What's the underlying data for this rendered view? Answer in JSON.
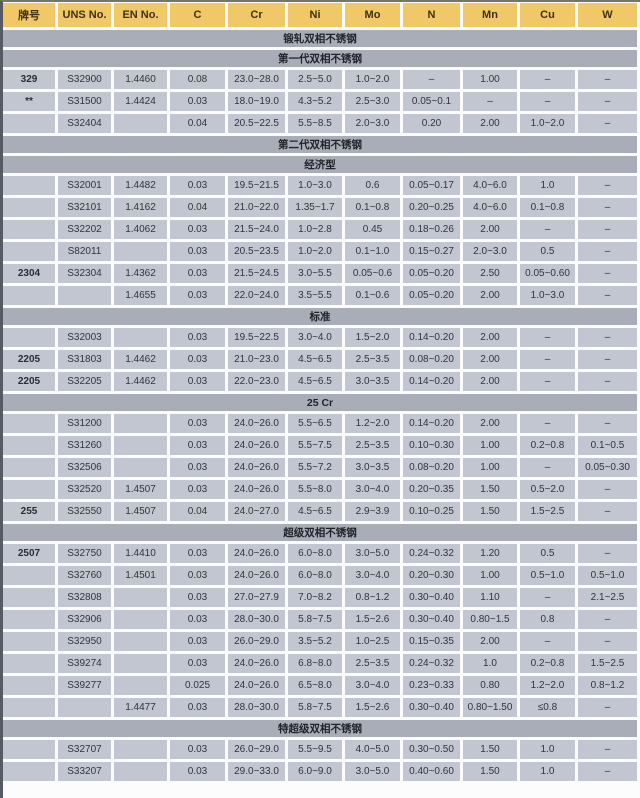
{
  "table": {
    "columns": [
      "牌号",
      "UNS No.",
      "EN No.",
      "C",
      "Cr",
      "Ni",
      "Mo",
      "N",
      "Mn",
      "Cu",
      "W"
    ],
    "rows": [
      {
        "type": "section",
        "label": "锻轧双相不锈钢"
      },
      {
        "type": "section",
        "label": "第一代双相不锈钢"
      },
      {
        "type": "data",
        "cells": [
          "329",
          "S32900",
          "1.4460",
          "0.08",
          "23.0~28.0",
          "2.5~5.0",
          "1.0~2.0",
          "–",
          "1.00",
          "–",
          "–"
        ]
      },
      {
        "type": "data",
        "cells": [
          "**",
          "S31500",
          "1.4424",
          "0.03",
          "18.0~19.0",
          "4.3~5.2",
          "2.5~3.0",
          "0.05~0.1",
          "–",
          "–",
          "–"
        ]
      },
      {
        "type": "data",
        "cells": [
          "",
          "S32404",
          "",
          "0.04",
          "20.5~22.5",
          "5.5~8.5",
          "2.0~3.0",
          "0.20",
          "2.00",
          "1.0~2.0",
          "–"
        ]
      },
      {
        "type": "section",
        "label": "第二代双相不锈钢"
      },
      {
        "type": "section",
        "label": "经济型"
      },
      {
        "type": "data",
        "cells": [
          "",
          "S32001",
          "1.4482",
          "0.03",
          "19.5~21.5",
          "1.0~3.0",
          "0.6",
          "0.05~0.17",
          "4.0~6.0",
          "1.0",
          "–"
        ]
      },
      {
        "type": "data",
        "cells": [
          "",
          "S32101",
          "1.4162",
          "0.04",
          "21.0~22.0",
          "1.35~1.7",
          "0.1~0.8",
          "0.20~0.25",
          "4.0~6.0",
          "0.1~0.8",
          "–"
        ]
      },
      {
        "type": "data",
        "cells": [
          "",
          "S32202",
          "1.4062",
          "0.03",
          "21.5~24.0",
          "1.0~2.8",
          "0.45",
          "0.18~0.26",
          "2.00",
          "–",
          "–"
        ]
      },
      {
        "type": "data",
        "cells": [
          "",
          "S82011",
          "",
          "0.03",
          "20.5~23.5",
          "1.0~2.0",
          "0.1~1.0",
          "0.15~0.27",
          "2.0~3.0",
          "0.5",
          "–"
        ]
      },
      {
        "type": "data",
        "cells": [
          "2304",
          "S32304",
          "1.4362",
          "0.03",
          "21.5~24.5",
          "3.0~5.5",
          "0.05~0.6",
          "0.05~0.20",
          "2.50",
          "0.05~0.60",
          "–"
        ]
      },
      {
        "type": "data",
        "cells": [
          "",
          "",
          "1.4655",
          "0.03",
          "22.0~24.0",
          "3.5~5.5",
          "0.1~0.6",
          "0.05~0.20",
          "2.00",
          "1.0~3.0",
          "–"
        ]
      },
      {
        "type": "section",
        "label": "标准"
      },
      {
        "type": "data",
        "cells": [
          "",
          "S32003",
          "",
          "0.03",
          "19.5~22.5",
          "3.0~4.0",
          "1.5~2.0",
          "0.14~0.20",
          "2.00",
          "–",
          "–"
        ]
      },
      {
        "type": "data",
        "cells": [
          "2205",
          "S31803",
          "1.4462",
          "0.03",
          "21.0~23.0",
          "4.5~6.5",
          "2.5~3.5",
          "0.08~0.20",
          "2.00",
          "–",
          "–"
        ]
      },
      {
        "type": "data",
        "cells": [
          "2205",
          "S32205",
          "1.4462",
          "0.03",
          "22.0~23.0",
          "4.5~6.5",
          "3.0~3.5",
          "0.14~0.20",
          "2.00",
          "–",
          "–"
        ]
      },
      {
        "type": "section",
        "label": "25 Cr"
      },
      {
        "type": "data",
        "cells": [
          "",
          "S31200",
          "",
          "0.03",
          "24.0~26.0",
          "5.5~6.5",
          "1.2~2.0",
          "0.14~0.20",
          "2.00",
          "–",
          "–"
        ]
      },
      {
        "type": "data",
        "cells": [
          "",
          "S31260",
          "",
          "0.03",
          "24.0~26.0",
          "5.5~7.5",
          "2.5~3.5",
          "0.10~0.30",
          "1.00",
          "0.2~0.8",
          "0.1~0.5"
        ]
      },
      {
        "type": "data",
        "cells": [
          "",
          "S32506",
          "",
          "0.03",
          "24.0~26.0",
          "5.5~7.2",
          "3.0~3.5",
          "0.08~0.20",
          "1.00",
          "–",
          "0.05~0.30"
        ]
      },
      {
        "type": "data",
        "cells": [
          "",
          "S32520",
          "1.4507",
          "0.03",
          "24.0~26.0",
          "5.5~8.0",
          "3.0~4.0",
          "0.20~0.35",
          "1.50",
          "0.5~2.0",
          "–"
        ]
      },
      {
        "type": "data",
        "cells": [
          "255",
          "S32550",
          "1.4507",
          "0.04",
          "24.0~27.0",
          "4.5~6.5",
          "2.9~3.9",
          "0.10~0.25",
          "1.50",
          "1.5~2.5",
          "–"
        ]
      },
      {
        "type": "section",
        "label": "超级双相不锈钢"
      },
      {
        "type": "data",
        "cells": [
          "2507",
          "S32750",
          "1.4410",
          "0.03",
          "24.0~26.0",
          "6.0~8.0",
          "3.0~5.0",
          "0.24~0.32",
          "1.20",
          "0.5",
          "–"
        ]
      },
      {
        "type": "data",
        "cells": [
          "",
          "S32760",
          "1.4501",
          "0.03",
          "24.0~26.0",
          "6.0~8.0",
          "3.0~4.0",
          "0.20~0.30",
          "1.00",
          "0.5~1.0",
          "0.5~1.0"
        ]
      },
      {
        "type": "data",
        "cells": [
          "",
          "S32808",
          "",
          "0.03",
          "27.0~27.9",
          "7.0~8.2",
          "0.8~1.2",
          "0.30~0.40",
          "1.10",
          "–",
          "2.1~2.5"
        ]
      },
      {
        "type": "data",
        "cells": [
          "",
          "S32906",
          "",
          "0.03",
          "28.0~30.0",
          "5.8~7.5",
          "1.5~2.6",
          "0.30~0.40",
          "0.80~1.5",
          "0.8",
          "–"
        ]
      },
      {
        "type": "data",
        "cells": [
          "",
          "S32950",
          "",
          "0.03",
          "26.0~29.0",
          "3.5~5.2",
          "1.0~2.5",
          "0.15~0.35",
          "2.00",
          "–",
          "–"
        ]
      },
      {
        "type": "data",
        "cells": [
          "",
          "S39274",
          "",
          "0.03",
          "24.0~26.0",
          "6.8~8.0",
          "2.5~3.5",
          "0.24~0.32",
          "1.0",
          "0.2~0.8",
          "1.5~2.5"
        ]
      },
      {
        "type": "data",
        "cells": [
          "",
          "S39277",
          "",
          "0.025",
          "24.0~26.0",
          "6.5~8.0",
          "3.0~4.0",
          "0.23~0.33",
          "0.80",
          "1.2~2.0",
          "0.8~1.2"
        ]
      },
      {
        "type": "data",
        "cells": [
          "",
          "",
          "1.4477",
          "0.03",
          "28.0~30.0",
          "5.8~7.5",
          "1.5~2.6",
          "0.30~0.40",
          "0.80~1.50",
          "≤0.8",
          "–"
        ]
      },
      {
        "type": "section",
        "label": "特超级双相不锈钢"
      },
      {
        "type": "data",
        "cells": [
          "",
          "S32707",
          "",
          "0.03",
          "26.0~29.0",
          "5.5~9.5",
          "4.0~5.0",
          "0.30~0.50",
          "1.50",
          "1.0",
          "–"
        ]
      },
      {
        "type": "data",
        "cells": [
          "",
          "S33207",
          "",
          "0.03",
          "29.0~33.0",
          "6.0~9.0",
          "3.0~5.0",
          "0.40~0.60",
          "1.50",
          "1.0",
          "–"
        ]
      }
    ]
  },
  "colors": {
    "header_bg": "#f0c868",
    "header_text": "#3e3115",
    "section_bg": "#a8adb7",
    "cell_bg": "#c1c6d0",
    "border_left": "#565a62"
  }
}
